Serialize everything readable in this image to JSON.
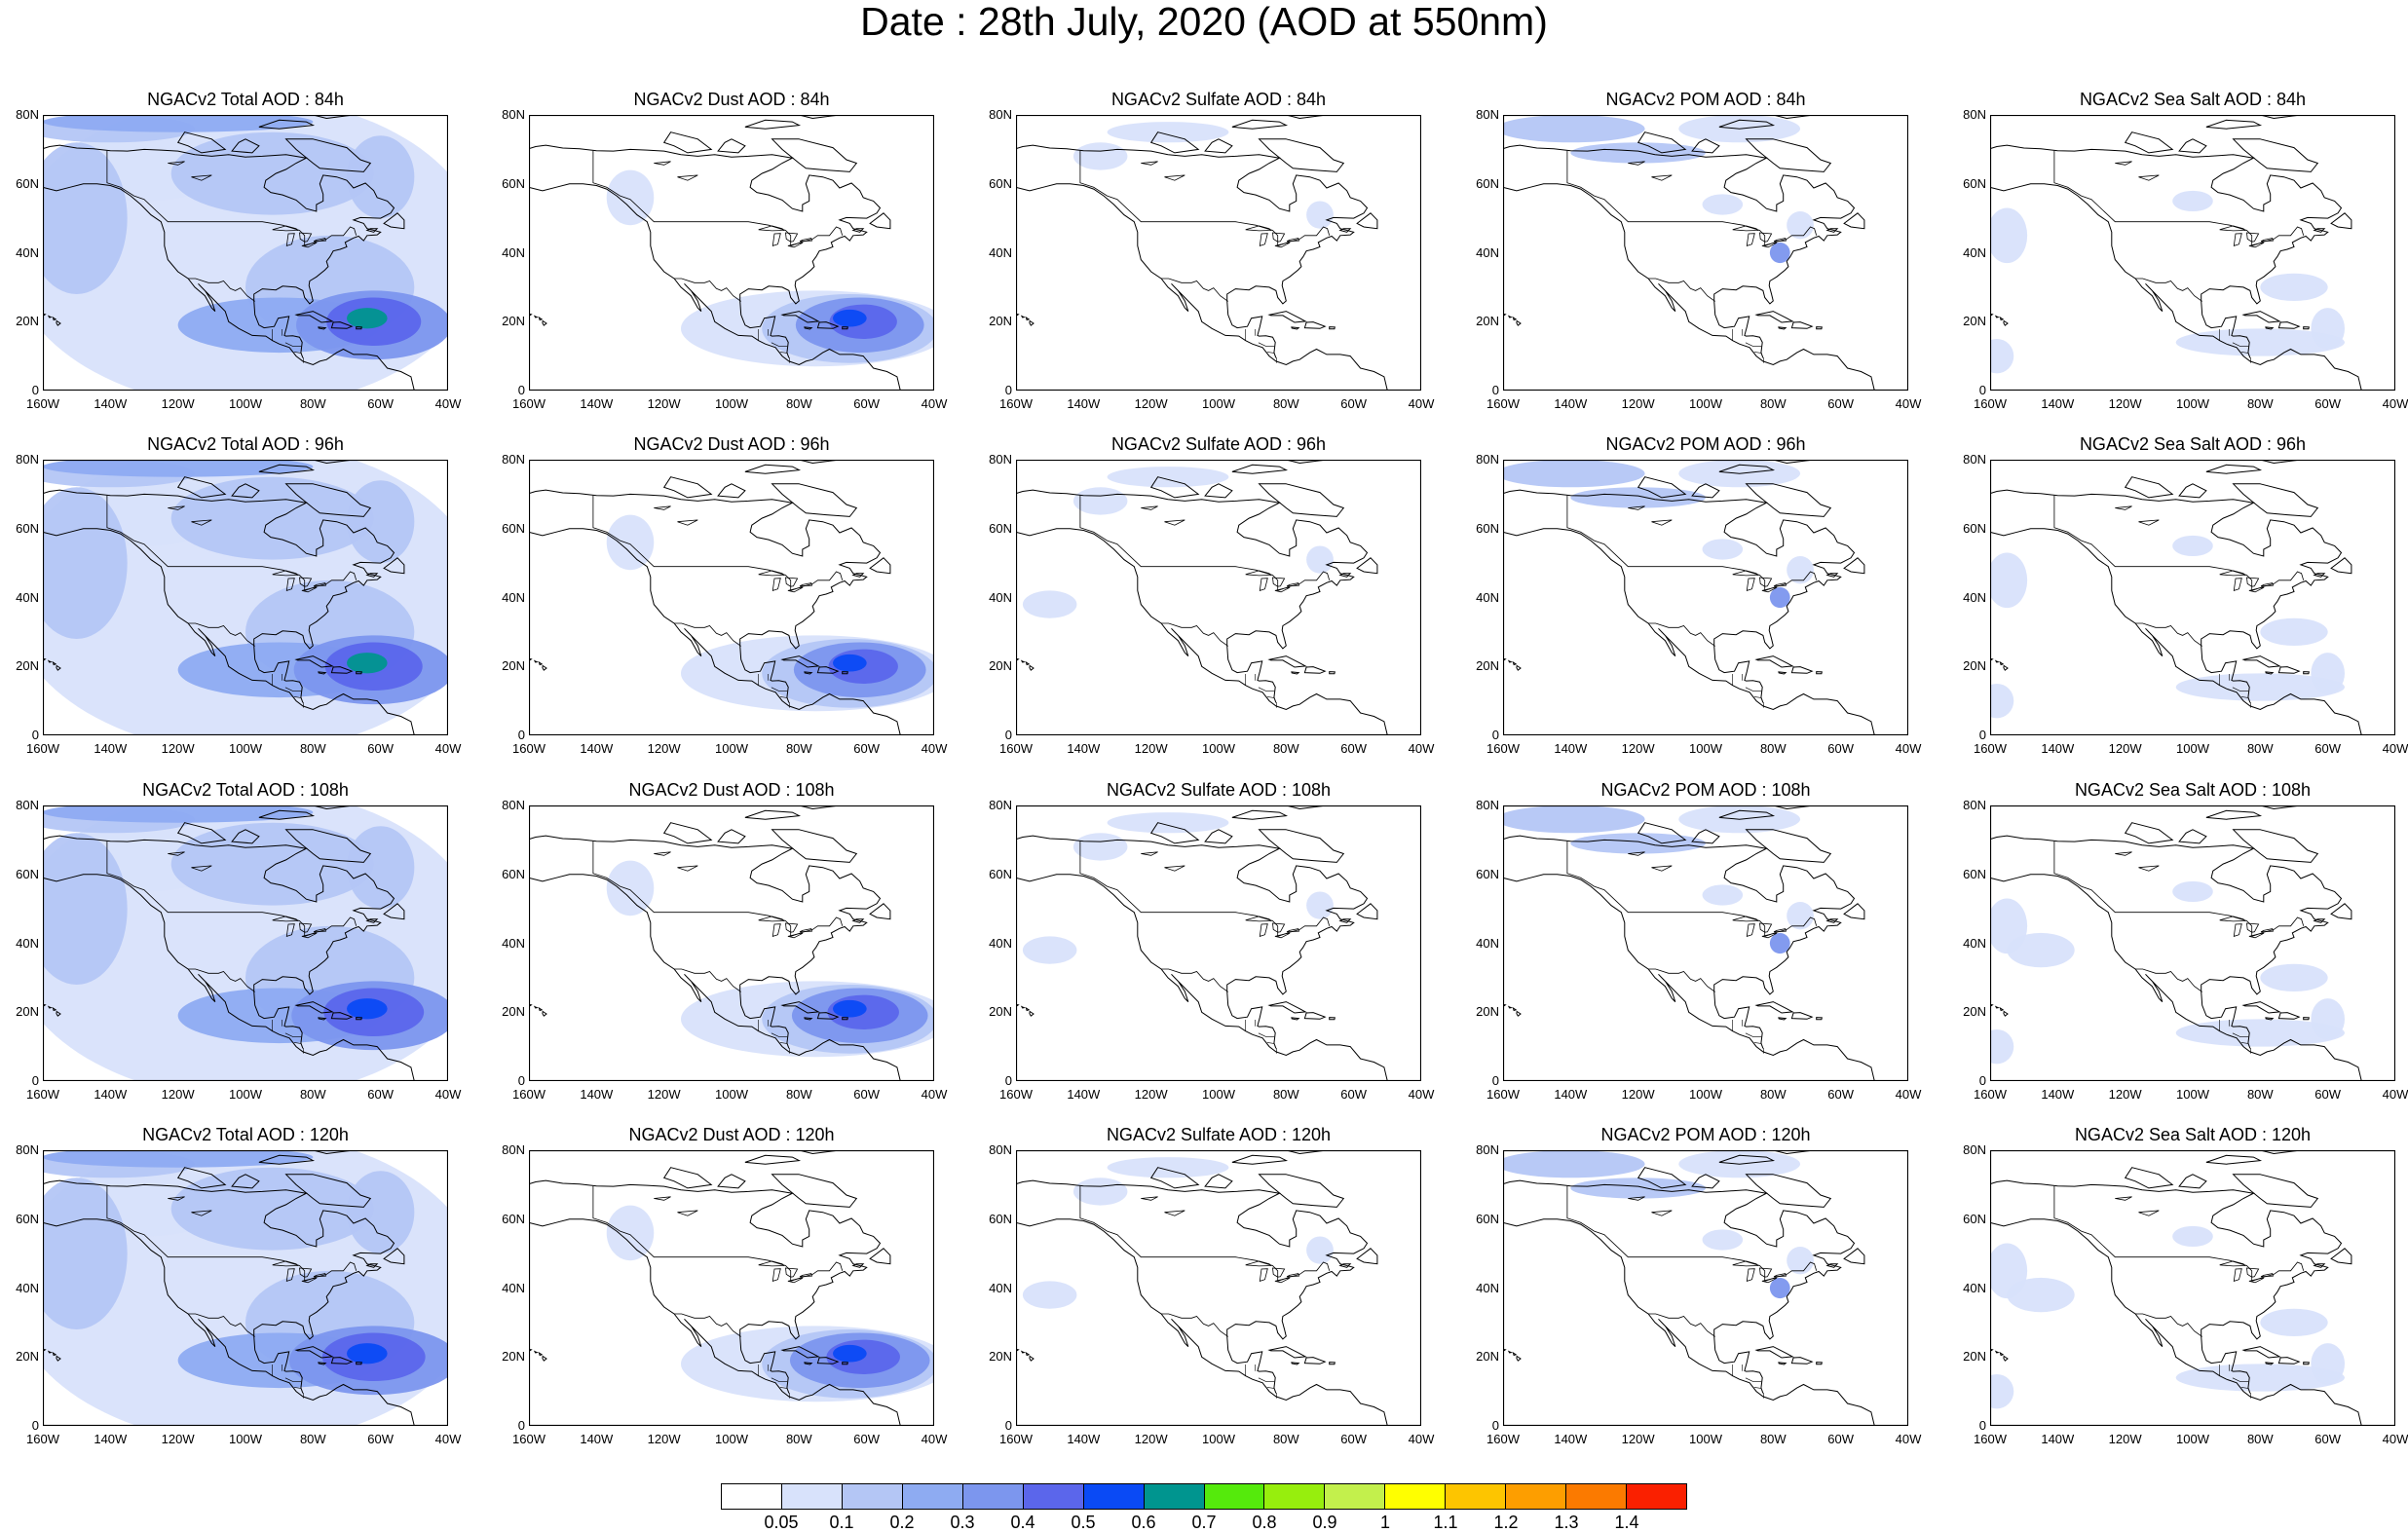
{
  "title": "Date : 28th July, 2020 (AOD at 550nm)",
  "columns": [
    {
      "species": "Total",
      "color_label": "NGACv2 Total AOD"
    },
    {
      "species": "Dust",
      "color_label": "NGACv2 Dust AOD"
    },
    {
      "species": "Sulfate",
      "color_label": "NGACv2 Sulfate AOD"
    },
    {
      "species": "POM",
      "color_label": "NGACv2 POM AOD"
    },
    {
      "species": "SeaSalt",
      "color_label": "NGACv2 Sea Salt AOD"
    }
  ],
  "panel_titles": [
    [
      "NGACv2 Total AOD : 84h",
      "NGACv2 Dust AOD : 84h",
      "NGACv2 Sulfate AOD : 84h",
      "NGACv2 POM AOD : 84h",
      "NGACv2 Sea Salt AOD : 84h"
    ],
    [
      "NGACv2 Total AOD : 96h",
      "NGACv2 Dust AOD : 96h",
      "NGACv2 Sulfate AOD : 96h",
      "NGACv2 POM AOD : 96h",
      "NGACv2 Sea Salt AOD : 96h"
    ],
    [
      "NGACv2 Total AOD : 108h",
      "NGACv2 Dust AOD : 108h",
      "NGACv2 Sulfate AOD : 108h",
      "NGACv2 POM AOD : 108h",
      "NGACv2 Sea Salt AOD : 108h"
    ],
    [
      "NGACv2 Total AOD : 120h",
      "NGACv2 Dust AOD : 120h",
      "NGACv2 Sulfate AOD : 120h",
      "NGACv2 POM AOD : 120h",
      "NGACv2 Sea Salt  AOD : 120h"
    ]
  ],
  "lat_labels": [
    "80N",
    "60N",
    "40N",
    "20N",
    "0"
  ],
  "lon_labels_a": [
    "160W",
    "140W",
    "120W",
    "100W",
    "80W",
    "60W",
    "40W"
  ],
  "lon_labels_b": [
    "160W",
    "140W",
    "120W",
    "100W",
    "80W",
    "60W",
    "40W"
  ],
  "map_extent": {
    "lon_min": -160,
    "lon_max": -40,
    "lat_min": 0,
    "lat_max": 80
  },
  "colorbar": {
    "labels": [
      "0.05",
      "0.1",
      "0.2",
      "0.3",
      "0.4",
      "0.5",
      "0.6",
      "0.7",
      "0.8",
      "0.9",
      "1",
      "1.1",
      "1.2",
      "1.3",
      "1.4"
    ],
    "colors": [
      "#ffffff",
      "#d8e2fb",
      "#b4c6f5",
      "#8eabf2",
      "#7c96ee",
      "#5b66eb",
      "#0a4af5",
      "#00958f",
      "#55ea0c",
      "#97ee0d",
      "#c3f04c",
      "#ffff00",
      "#fdc500",
      "#fd9e00",
      "#fb7a00",
      "#fa2000"
    ]
  }
}
